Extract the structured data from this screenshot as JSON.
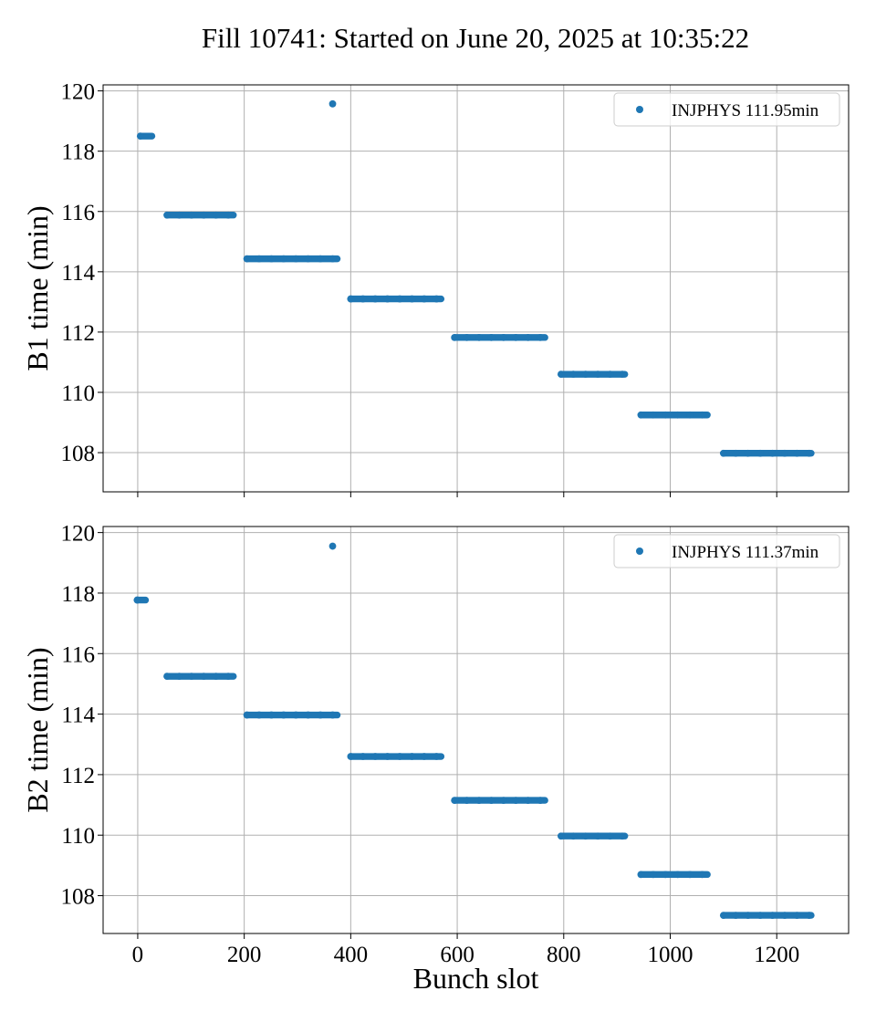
{
  "figure_title": "Fill 10741: Started on June 20, 2025 at 10:35:22",
  "colors": {
    "series": "#1f77b4",
    "grid": "#b0b0b0",
    "axes": "#000000"
  },
  "chart_data": [
    {
      "type": "scatter",
      "title": "Fill 10741: Started on June 20, 2025 at 10:35:22",
      "xlabel": "",
      "ylabel": "B1 time (min)",
      "xlim": [
        -65,
        1335
      ],
      "ylim": [
        106.7,
        120.2
      ],
      "xticks": [
        0,
        200,
        400,
        600,
        800,
        1000,
        1200
      ],
      "xtick_labels": [
        "",
        "",
        "",
        "",
        "",
        "",
        ""
      ],
      "yticks": [
        108,
        110,
        112,
        114,
        116,
        118,
        120
      ],
      "ytick_labels": [
        "108",
        "110",
        "112",
        "114",
        "116",
        "118",
        "120"
      ],
      "grid": true,
      "legend_position": "upper right",
      "series": [
        {
          "name": "INJPHYS 111.95min",
          "color": "#1f77b4",
          "segments": [
            {
              "x_start": 5,
              "x_end": 27,
              "y": 118.5
            },
            {
              "x_start": 55,
              "x_end": 180,
              "y": 115.88
            },
            {
              "x_start": 205,
              "x_end": 375,
              "y": 114.43
            },
            {
              "x_start": 400,
              "x_end": 570,
              "y": 113.1
            },
            {
              "x_start": 595,
              "x_end": 765,
              "y": 111.82
            },
            {
              "x_start": 795,
              "x_end": 915,
              "y": 110.6
            },
            {
              "x_start": 945,
              "x_end": 1070,
              "y": 109.25
            },
            {
              "x_start": 1100,
              "x_end": 1265,
              "y": 107.98
            }
          ],
          "points": [
            {
              "x": 366,
              "y": 119.57
            }
          ]
        }
      ]
    },
    {
      "type": "scatter",
      "xlabel": "Bunch slot",
      "ylabel": "B2 time (min)",
      "xlim": [
        -65,
        1335
      ],
      "ylim": [
        106.75,
        120.2
      ],
      "xticks": [
        0,
        200,
        400,
        600,
        800,
        1000,
        1200
      ],
      "xtick_labels": [
        "0",
        "200",
        "400",
        "600",
        "800",
        "1000",
        "1200"
      ],
      "yticks": [
        108,
        110,
        112,
        114,
        116,
        118,
        120
      ],
      "ytick_labels": [
        "108",
        "110",
        "112",
        "114",
        "116",
        "118",
        "120"
      ],
      "grid": true,
      "legend_position": "upper right",
      "series": [
        {
          "name": "INJPHYS 111.37min",
          "color": "#1f77b4",
          "segments": [
            {
              "x_start": -1,
              "x_end": 15,
              "y": 117.77
            },
            {
              "x_start": 55,
              "x_end": 180,
              "y": 115.25
            },
            {
              "x_start": 205,
              "x_end": 375,
              "y": 113.97
            },
            {
              "x_start": 400,
              "x_end": 570,
              "y": 112.6
            },
            {
              "x_start": 595,
              "x_end": 765,
              "y": 111.15
            },
            {
              "x_start": 795,
              "x_end": 915,
              "y": 109.97
            },
            {
              "x_start": 945,
              "x_end": 1070,
              "y": 108.7
            },
            {
              "x_start": 1100,
              "x_end": 1265,
              "y": 107.35
            }
          ],
          "points": [
            {
              "x": 366,
              "y": 119.55
            }
          ]
        }
      ]
    }
  ]
}
